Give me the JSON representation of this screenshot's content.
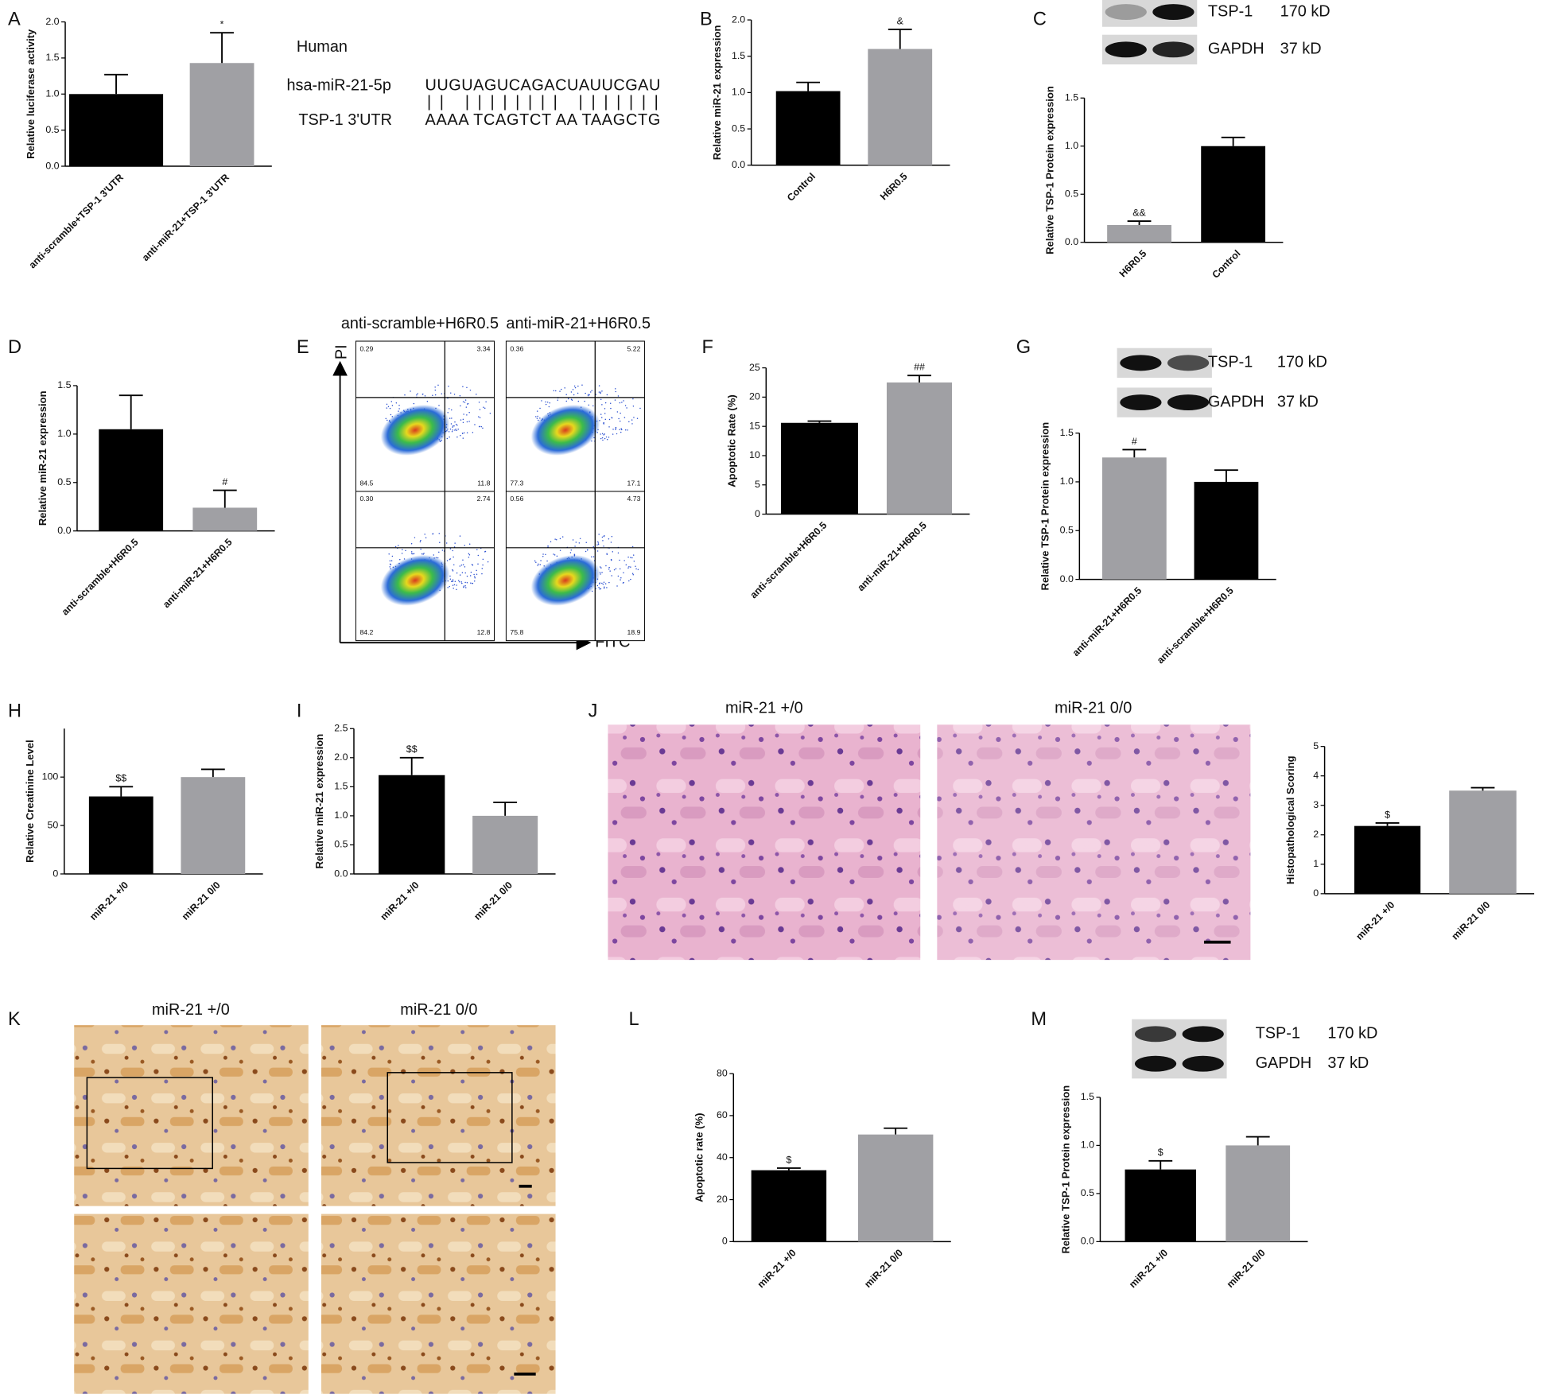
{
  "chart_data": [
    {
      "type": "bar",
      "panel": "A",
      "ylabel": "Relative luciferase activity",
      "categories": [
        "anti-scramble+TSP-1 3'UTR",
        "anti-miR-21+TSP-1 3'UTR"
      ],
      "values": [
        1.0,
        1.43
      ],
      "errors": [
        0.27,
        0.42
      ],
      "colors": [
        "#000000",
        "#a0a0a4"
      ],
      "sig_labels": [
        null,
        "*"
      ],
      "ylim": [
        0,
        2.0
      ],
      "yticks": [
        {
          "value": 0,
          "label": "0.0"
        },
        0.5,
        {
          "value": 1,
          "label": "1.0"
        },
        1.5,
        {
          "value": 2,
          "label": "2.0"
        }
      ]
    },
    {
      "type": "bar",
      "panel": "B",
      "ylabel": "Relative miR-21 expression",
      "categories": [
        "Control",
        "H6R0.5"
      ],
      "values": [
        1.02,
        1.6
      ],
      "errors": [
        0.12,
        0.27
      ],
      "colors": [
        "#000000",
        "#a0a0a4"
      ],
      "sig_labels": [
        null,
        "&"
      ],
      "ylim": [
        0,
        2.0
      ],
      "yticks": [
        {
          "value": 0,
          "label": "0.0"
        },
        0.5,
        {
          "value": 1,
          "label": "1.0"
        },
        1.5,
        {
          "value": 2,
          "label": "2.0"
        }
      ]
    },
    {
      "type": "bar",
      "panel": "C",
      "ylabel": "Relative TSP-1 Protein expression",
      "categories": [
        "H6R0.5",
        "Control"
      ],
      "values": [
        0.18,
        1.0
      ],
      "errors": [
        0.04,
        0.09
      ],
      "colors": [
        "#a0a0a4",
        "#000000"
      ],
      "sig_labels": [
        "&&",
        null
      ],
      "ylim": [
        0,
        1.5
      ],
      "yticks": [
        {
          "value": 0,
          "label": "0.0"
        },
        0.5,
        {
          "value": 1,
          "label": "1.0"
        },
        1.5
      ],
      "blot_labels": [
        "TSP-1",
        "170 kD",
        "GAPDH",
        "37 kD"
      ]
    },
    {
      "type": "bar",
      "panel": "D",
      "ylabel": "Relative miR-21 expression",
      "categories": [
        "anti-scramble+H6R0.5",
        "anti-miR-21+H6R0.5"
      ],
      "values": [
        1.05,
        0.24
      ],
      "errors": [
        0.35,
        0.18
      ],
      "colors": [
        "#000000",
        "#a0a0a4"
      ],
      "sig_labels": [
        null,
        "#"
      ],
      "ylim": [
        0,
        1.5
      ],
      "yticks": [
        {
          "value": 0,
          "label": "0.0"
        },
        0.5,
        {
          "value": 1,
          "label": "1.0"
        },
        1.5
      ]
    },
    {
      "type": "bar",
      "panel": "F",
      "ylabel": "Apoptotic Rate (%)",
      "categories": [
        "anti-scramble+H6R0.5",
        "anti-miR-21+H6R0.5"
      ],
      "values": [
        15.6,
        22.5
      ],
      "errors": [
        0.3,
        1.2
      ],
      "colors": [
        "#000000",
        "#a0a0a4"
      ],
      "sig_labels": [
        null,
        "##"
      ],
      "ylim": [
        0,
        25
      ],
      "yticks": [
        0,
        5,
        10,
        15,
        20,
        25
      ]
    },
    {
      "type": "bar",
      "panel": "G",
      "ylabel": "Relative TSP-1 Protein expression",
      "categories": [
        "anti-miR-21+H6R0.5",
        "anti-scramble+H6R0.5"
      ],
      "values": [
        1.25,
        1.0
      ],
      "errors": [
        0.08,
        0.12
      ],
      "colors": [
        "#a0a0a4",
        "#000000"
      ],
      "sig_labels": [
        "#",
        null
      ],
      "ylim": [
        0,
        1.5
      ],
      "yticks": [
        {
          "value": 0,
          "label": "0.0"
        },
        0.5,
        {
          "value": 1,
          "label": "1.0"
        },
        1.5
      ],
      "blot_labels": [
        "TSP-1",
        "170 kD",
        "GAPDH",
        "37 kD"
      ]
    },
    {
      "type": "bar",
      "panel": "H",
      "ylabel": "Relative Creatinine Level",
      "categories": [
        "miR-21 +/0",
        "miR-21 0/0"
      ],
      "values": [
        80,
        100
      ],
      "errors": [
        10,
        8
      ],
      "colors": [
        "#000000",
        "#a0a0a4"
      ],
      "sig_labels": [
        "$$",
        null
      ],
      "ylim": [
        0,
        150
      ],
      "yticks": [
        0,
        50,
        100
      ]
    },
    {
      "type": "bar",
      "panel": "I",
      "ylabel": "Relative miR-21 expression",
      "categories": [
        "miR-21 +/0",
        "miR-21 0/0"
      ],
      "values": [
        1.7,
        1.0
      ],
      "errors": [
        0.3,
        0.23
      ],
      "colors": [
        "#000000",
        "#a0a0a4"
      ],
      "sig_labels": [
        "$$",
        null
      ],
      "ylim": [
        0,
        2.5
      ],
      "yticks": [
        {
          "value": 0,
          "label": "0.0"
        },
        0.5,
        {
          "value": 1,
          "label": "1.0"
        },
        1.5,
        {
          "value": 2,
          "label": "2.0"
        },
        2.5
      ]
    },
    {
      "type": "bar",
      "panel": "J",
      "ylabel": "Histopathological Scoring",
      "categories": [
        "miR-21 +/0",
        "miR-21 0/0"
      ],
      "values": [
        2.3,
        3.5
      ],
      "errors": [
        0.1,
        0.1
      ],
      "colors": [
        "#000000",
        "#a0a0a4"
      ],
      "sig_labels": [
        "$",
        null
      ],
      "ylim": [
        0,
        5
      ],
      "yticks": [
        0,
        1,
        2,
        3,
        4,
        5
      ],
      "image_titles": [
        "miR-21 +/0",
        "miR-21 0/0"
      ]
    },
    {
      "type": "bar",
      "panel": "L",
      "ylabel": "Apoptotic rate (%)",
      "categories": [
        "miR-21 +/0",
        "miR-21 0/0"
      ],
      "values": [
        34,
        51
      ],
      "errors": [
        1,
        3
      ],
      "colors": [
        "#000000",
        "#a0a0a4"
      ],
      "sig_labels": [
        "$",
        null
      ],
      "ylim": [
        0,
        80
      ],
      "yticks": [
        0,
        20,
        40,
        60,
        80
      ]
    },
    {
      "type": "bar",
      "panel": "M",
      "ylabel": "Relative TSP-1 Protein expression",
      "categories": [
        "miR-21 +/0",
        "miR-21 0/0"
      ],
      "values": [
        0.75,
        1.0
      ],
      "errors": [
        0.09,
        0.09
      ],
      "colors": [
        "#000000",
        "#a0a0a4"
      ],
      "sig_labels": [
        "$",
        null
      ],
      "ylim": [
        0,
        1.5
      ],
      "yticks": [
        {
          "value": 0,
          "label": "0.0"
        },
        0.5,
        {
          "value": 1,
          "label": "1.0"
        },
        1.5
      ],
      "blot_labels": [
        "TSP-1",
        "170 kD",
        "GAPDH",
        "37 kD"
      ]
    }
  ],
  "sequence": {
    "species": "Human",
    "mirna_name": "hsa-miR-21-5p",
    "mirna_seq": "UUGUAGUCAGACUAUUCGAU",
    "alignment": "|| |||||||| |||||||",
    "utr_name": "TSP-1 3'UTR",
    "utr_seq": "AAAA TCAGTCT AA TAAGCTG"
  },
  "flow": {
    "panel": "E",
    "titles": [
      "anti-scramble+H6R0.5",
      "anti-miR-21+H6R0.5"
    ],
    "y_axis": "PI",
    "x_axis": "FITC",
    "plots": [
      [
        "0.29",
        "3.34",
        "84.5",
        "11.8"
      ],
      [
        "0.36",
        "5.22",
        "77.3",
        "17.1"
      ],
      [
        "0.30",
        "2.74",
        "84.2",
        "12.8"
      ],
      [
        "0.56",
        "4.73",
        "75.8",
        "18.9"
      ]
    ]
  },
  "ihc": {
    "panel": "K",
    "titles": [
      "miR-21 +/0",
      "miR-21 0/0"
    ]
  }
}
